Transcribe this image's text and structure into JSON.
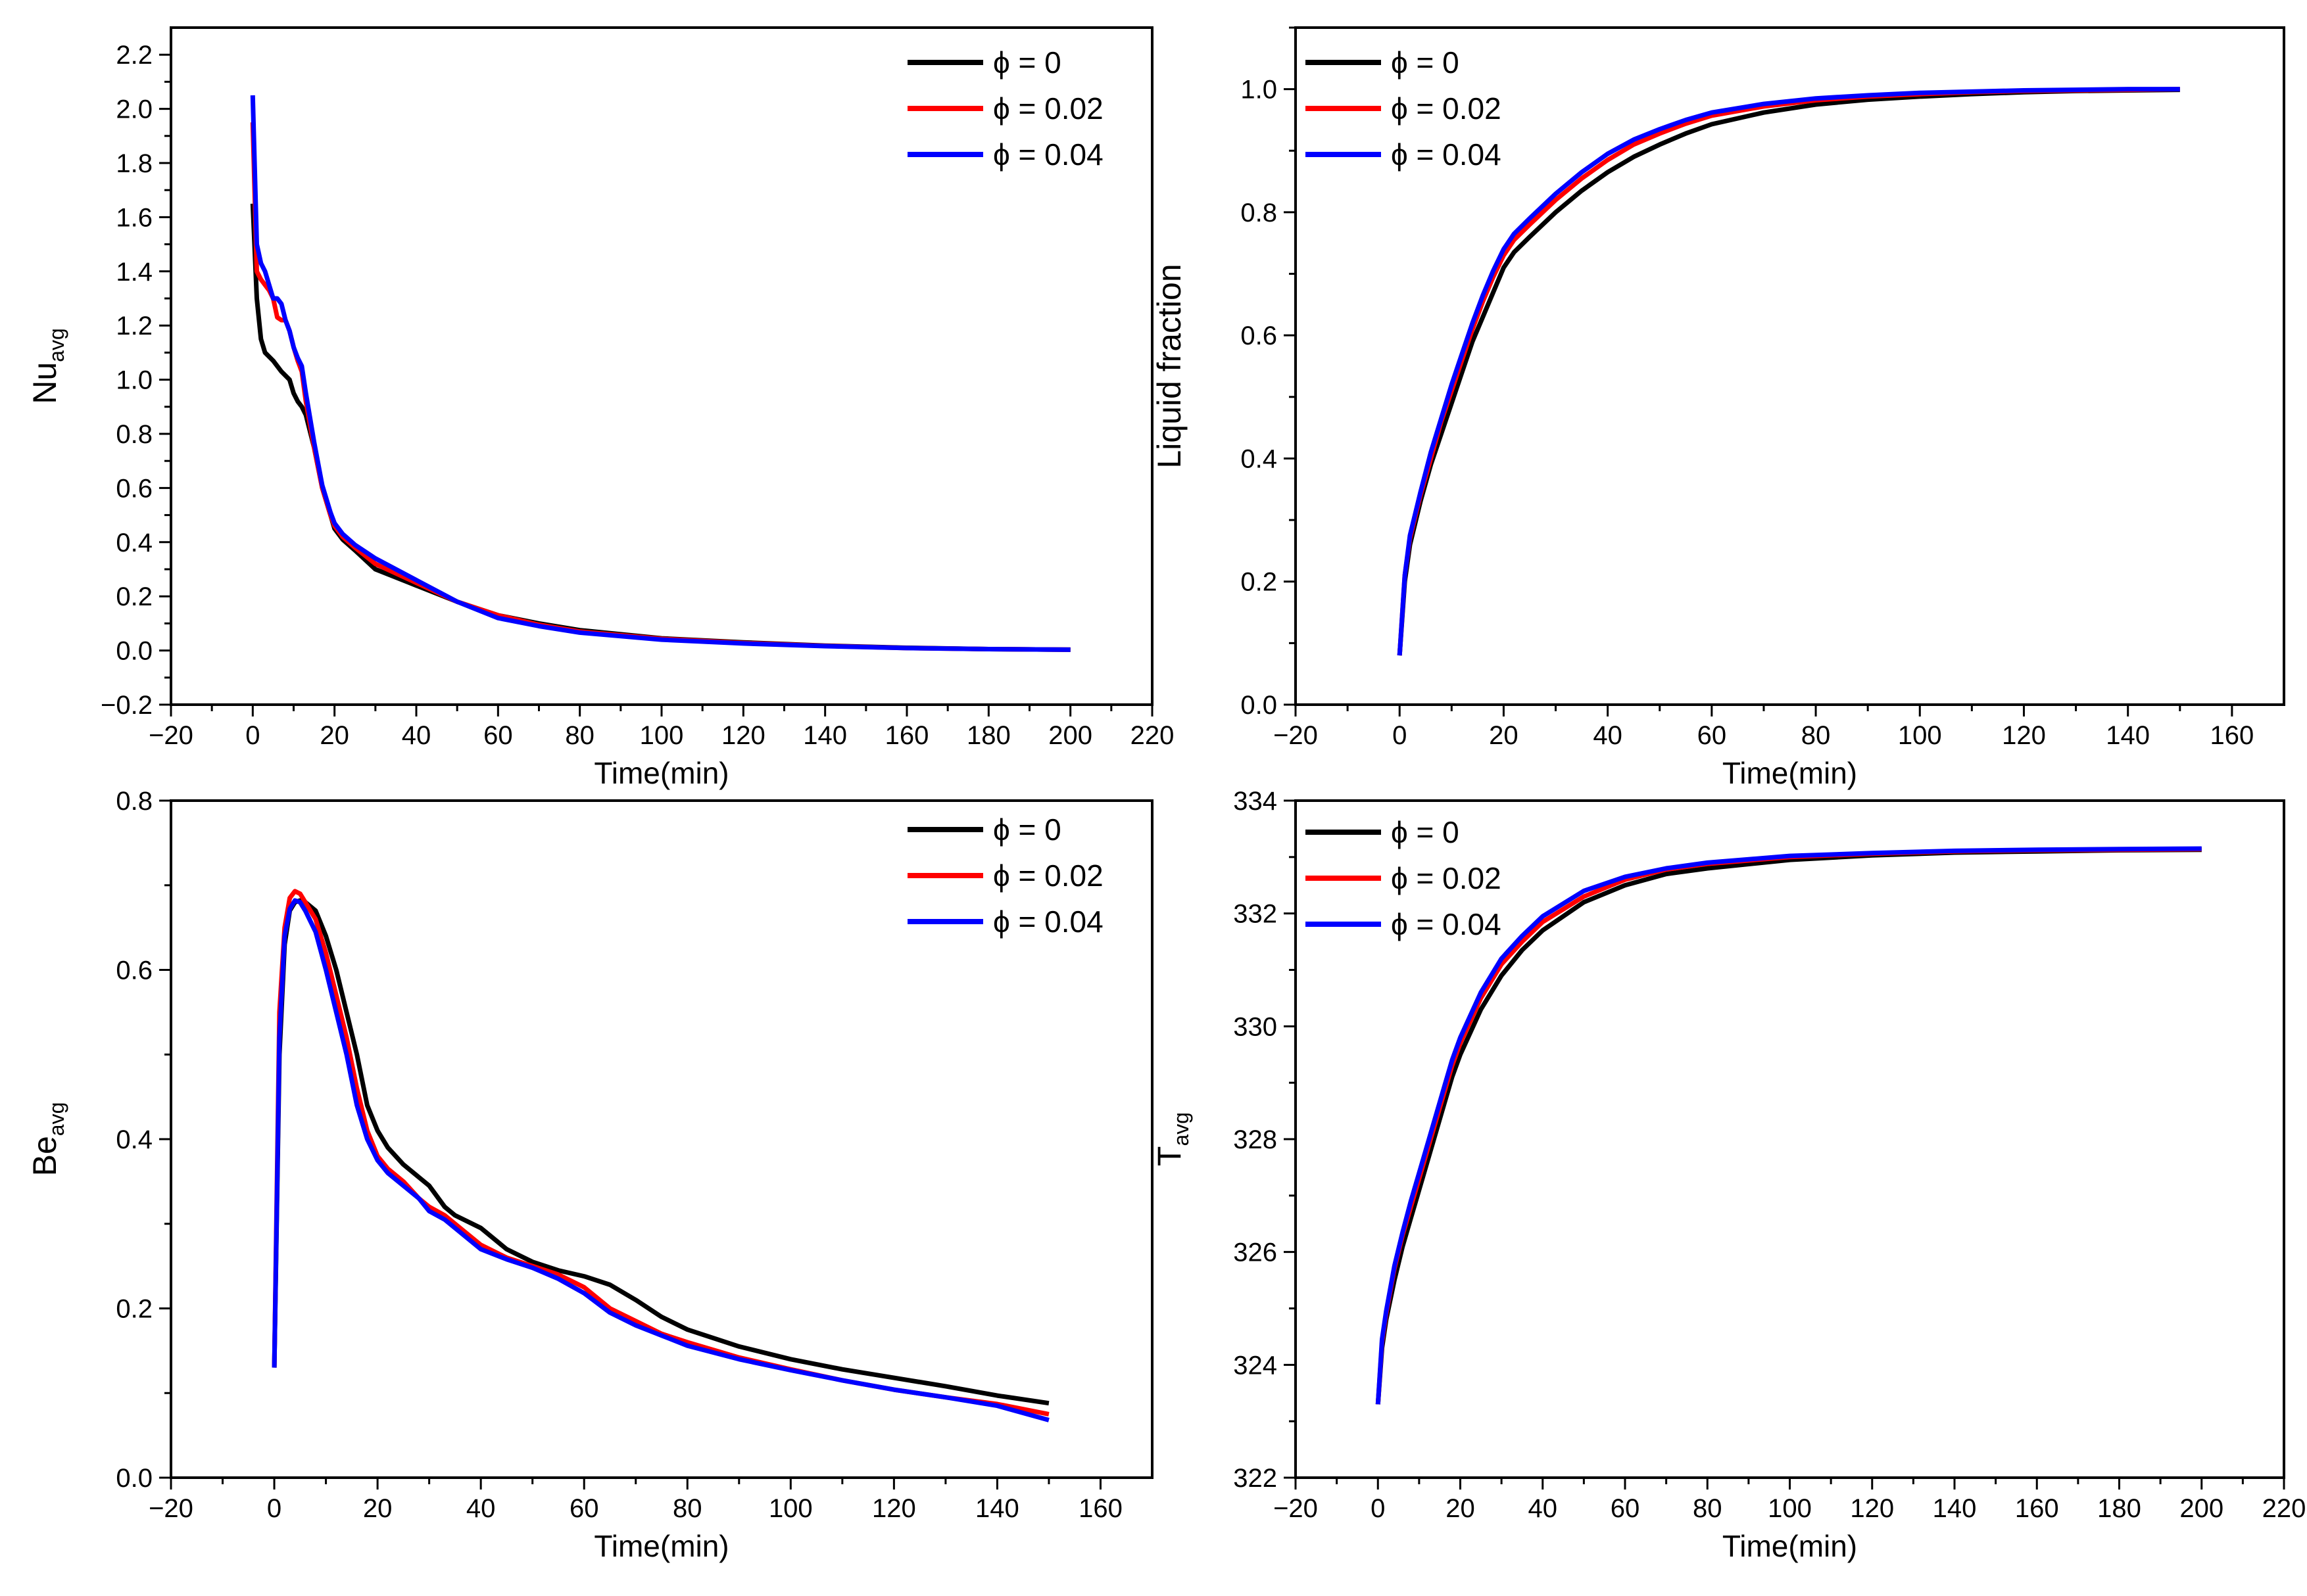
{
  "chart_data": [
    {
      "type": "line",
      "xlabel": "Time(min)",
      "ylabel": "Nu",
      "ylabel_sub": "avg",
      "xlim": [
        -20,
        220
      ],
      "ylim": [
        -0.2,
        2.3
      ],
      "xticks": [
        -20,
        0,
        20,
        40,
        60,
        80,
        100,
        120,
        140,
        160,
        180,
        200,
        220
      ],
      "yticks": [
        -0.2,
        0.0,
        0.2,
        0.4,
        0.6,
        0.8,
        1.0,
        1.2,
        1.4,
        1.6,
        1.8,
        2.0,
        2.2
      ],
      "ytick_decimals": 1,
      "legend_position": "top-right",
      "series": [
        {
          "name": "ϕ = 0",
          "color": "#000000",
          "x": [
            0,
            1,
            2,
            3,
            5,
            7,
            9,
            10,
            11,
            12,
            13,
            15,
            17,
            19,
            20,
            22,
            25,
            30,
            40,
            50,
            60,
            70,
            80,
            100,
            120,
            140,
            160,
            180,
            200
          ],
          "y": [
            1.65,
            1.3,
            1.15,
            1.1,
            1.07,
            1.03,
            1.0,
            0.95,
            0.92,
            0.9,
            0.87,
            0.75,
            0.6,
            0.5,
            0.45,
            0.41,
            0.37,
            0.3,
            0.24,
            0.18,
            0.13,
            0.1,
            0.075,
            0.045,
            0.03,
            0.018,
            0.01,
            0.005,
            0.003
          ]
        },
        {
          "name": "ϕ = 0.02",
          "color": "#ff0000",
          "x": [
            0,
            1,
            2,
            3,
            4,
            5,
            6,
            7,
            8,
            9,
            10,
            11,
            12,
            13,
            15,
            17,
            19,
            20,
            22,
            25,
            30,
            40,
            50,
            60,
            70,
            80,
            100,
            120,
            140,
            160,
            180,
            200
          ],
          "y": [
            1.95,
            1.4,
            1.37,
            1.35,
            1.33,
            1.3,
            1.23,
            1.22,
            1.22,
            1.18,
            1.12,
            1.07,
            1.03,
            0.92,
            0.75,
            0.6,
            0.5,
            0.46,
            0.42,
            0.38,
            0.32,
            0.25,
            0.18,
            0.13,
            0.095,
            0.07,
            0.043,
            0.028,
            0.017,
            0.009,
            0.005,
            0.003
          ]
        },
        {
          "name": "ϕ = 0.04",
          "color": "#0000ff",
          "x": [
            0,
            1,
            2,
            3,
            4,
            5,
            6,
            7,
            8,
            9,
            10,
            11,
            12,
            13,
            15,
            17,
            19,
            20,
            22,
            25,
            30,
            40,
            50,
            60,
            70,
            80,
            100,
            120,
            140,
            160,
            180,
            200
          ],
          "y": [
            2.05,
            1.5,
            1.43,
            1.4,
            1.35,
            1.3,
            1.3,
            1.28,
            1.22,
            1.18,
            1.12,
            1.08,
            1.05,
            0.95,
            0.77,
            0.61,
            0.51,
            0.47,
            0.43,
            0.39,
            0.34,
            0.26,
            0.18,
            0.12,
            0.09,
            0.066,
            0.04,
            0.026,
            0.016,
            0.009,
            0.005,
            0.003
          ]
        }
      ]
    },
    {
      "type": "line",
      "xlabel": "Time(min)",
      "ylabel": "Liquid fraction",
      "ylabel_sub": "",
      "xlim": [
        -20,
        170
      ],
      "ylim": [
        0.0,
        1.1
      ],
      "xticks": [
        -20,
        0,
        20,
        40,
        60,
        80,
        100,
        120,
        140,
        160
      ],
      "yticks": [
        0.0,
        0.2,
        0.4,
        0.6,
        0.8,
        1.0
      ],
      "ytick_decimals": 1,
      "legend_position": "top-left",
      "series": [
        {
          "name": "ϕ = 0",
          "color": "#000000",
          "x": [
            0,
            1,
            2,
            4,
            6,
            8,
            10,
            12,
            14,
            16,
            18,
            20,
            22,
            25,
            30,
            35,
            40,
            45,
            50,
            55,
            60,
            70,
            80,
            90,
            100,
            110,
            120,
            130,
            140,
            150
          ],
          "y": [
            0.08,
            0.2,
            0.26,
            0.33,
            0.39,
            0.44,
            0.49,
            0.54,
            0.59,
            0.63,
            0.67,
            0.71,
            0.735,
            0.76,
            0.8,
            0.835,
            0.865,
            0.89,
            0.91,
            0.928,
            0.943,
            0.962,
            0.975,
            0.983,
            0.988,
            0.992,
            0.995,
            0.997,
            0.998,
            0.999
          ]
        },
        {
          "name": "ϕ = 0.02",
          "color": "#ff0000",
          "x": [
            0,
            1,
            2,
            4,
            6,
            8,
            10,
            12,
            14,
            16,
            18,
            20,
            22,
            25,
            30,
            35,
            40,
            45,
            50,
            55,
            60,
            70,
            80,
            90,
            100,
            110,
            120,
            130,
            140,
            150
          ],
          "y": [
            0.08,
            0.21,
            0.27,
            0.34,
            0.4,
            0.46,
            0.51,
            0.56,
            0.61,
            0.655,
            0.695,
            0.73,
            0.755,
            0.78,
            0.82,
            0.855,
            0.885,
            0.91,
            0.928,
            0.944,
            0.957,
            0.972,
            0.982,
            0.988,
            0.992,
            0.995,
            0.997,
            0.998,
            0.999,
            1.0
          ]
        },
        {
          "name": "ϕ = 0.04",
          "color": "#0000ff",
          "x": [
            0,
            1,
            2,
            4,
            6,
            8,
            10,
            12,
            14,
            16,
            18,
            20,
            22,
            25,
            30,
            35,
            40,
            45,
            50,
            55,
            60,
            70,
            80,
            90,
            100,
            110,
            120,
            130,
            140,
            150
          ],
          "y": [
            0.08,
            0.21,
            0.275,
            0.345,
            0.41,
            0.465,
            0.52,
            0.57,
            0.62,
            0.665,
            0.705,
            0.74,
            0.765,
            0.79,
            0.83,
            0.865,
            0.895,
            0.918,
            0.935,
            0.95,
            0.962,
            0.976,
            0.985,
            0.99,
            0.994,
            0.996,
            0.998,
            0.999,
            1.0,
            1.0
          ]
        }
      ]
    },
    {
      "type": "line",
      "xlabel": "Time(min)",
      "ylabel": "Be",
      "ylabel_sub": "avg",
      "xlim": [
        -20,
        170
      ],
      "ylim": [
        0.0,
        0.8
      ],
      "xticks": [
        -20,
        0,
        20,
        40,
        60,
        80,
        100,
        120,
        140,
        160
      ],
      "yticks": [
        0.0,
        0.2,
        0.4,
        0.6,
        0.8
      ],
      "ytick_decimals": 1,
      "legend_position": "top-right",
      "series": [
        {
          "name": "ϕ = 0",
          "color": "#000000",
          "x": [
            0,
            1,
            2,
            3,
            4,
            5,
            6,
            8,
            10,
            12,
            14,
            16,
            18,
            20,
            22,
            25,
            28,
            30,
            33,
            35,
            40,
            45,
            50,
            55,
            60,
            65,
            70,
            75,
            80,
            90,
            100,
            110,
            120,
            130,
            140,
            150
          ],
          "y": [
            0.13,
            0.5,
            0.63,
            0.67,
            0.68,
            0.682,
            0.68,
            0.67,
            0.64,
            0.6,
            0.55,
            0.5,
            0.44,
            0.41,
            0.39,
            0.37,
            0.355,
            0.345,
            0.32,
            0.31,
            0.295,
            0.27,
            0.255,
            0.245,
            0.238,
            0.228,
            0.21,
            0.19,
            0.175,
            0.155,
            0.14,
            0.128,
            0.118,
            0.108,
            0.097,
            0.088
          ]
        },
        {
          "name": "ϕ = 0.02",
          "color": "#ff0000",
          "x": [
            0,
            1,
            2,
            3,
            4,
            5,
            6,
            8,
            10,
            12,
            14,
            16,
            18,
            20,
            22,
            25,
            28,
            30,
            33,
            35,
            40,
            45,
            50,
            55,
            60,
            65,
            70,
            75,
            80,
            90,
            100,
            110,
            120,
            130,
            140,
            150
          ],
          "y": [
            0.13,
            0.55,
            0.65,
            0.685,
            0.693,
            0.69,
            0.68,
            0.66,
            0.62,
            0.57,
            0.52,
            0.46,
            0.41,
            0.38,
            0.365,
            0.35,
            0.33,
            0.32,
            0.31,
            0.3,
            0.275,
            0.26,
            0.25,
            0.24,
            0.225,
            0.2,
            0.185,
            0.17,
            0.16,
            0.142,
            0.128,
            0.115,
            0.104,
            0.095,
            0.087,
            0.075
          ]
        },
        {
          "name": "ϕ = 0.04",
          "color": "#0000ff",
          "x": [
            0,
            1,
            2,
            3,
            4,
            5,
            6,
            8,
            10,
            12,
            14,
            16,
            18,
            20,
            22,
            25,
            28,
            30,
            33,
            35,
            40,
            45,
            50,
            55,
            60,
            65,
            70,
            75,
            80,
            90,
            100,
            110,
            120,
            130,
            140,
            150
          ],
          "y": [
            0.13,
            0.52,
            0.64,
            0.672,
            0.682,
            0.68,
            0.67,
            0.645,
            0.6,
            0.55,
            0.5,
            0.44,
            0.4,
            0.375,
            0.36,
            0.345,
            0.33,
            0.315,
            0.305,
            0.295,
            0.27,
            0.258,
            0.248,
            0.235,
            0.218,
            0.195,
            0.18,
            0.168,
            0.156,
            0.14,
            0.127,
            0.115,
            0.104,
            0.095,
            0.085,
            0.068
          ]
        }
      ]
    },
    {
      "type": "line",
      "xlabel": "Time(min)",
      "ylabel": "T",
      "ylabel_sub": "avg",
      "xlim": [
        -20,
        220
      ],
      "ylim": [
        322,
        334
      ],
      "xticks": [
        -20,
        0,
        20,
        40,
        60,
        80,
        100,
        120,
        140,
        160,
        180,
        200,
        220
      ],
      "yticks": [
        322,
        324,
        326,
        328,
        330,
        332,
        334
      ],
      "ytick_decimals": 0,
      "legend_position": "top-left",
      "series": [
        {
          "name": "ϕ = 0",
          "color": "#000000",
          "x": [
            0,
            1,
            2,
            4,
            6,
            8,
            10,
            12,
            14,
            16,
            18,
            20,
            25,
            30,
            35,
            40,
            50,
            60,
            70,
            80,
            100,
            120,
            140,
            160,
            180,
            200
          ],
          "y": [
            323.3,
            324.3,
            324.8,
            325.5,
            326.1,
            326.6,
            327.1,
            327.6,
            328.1,
            328.6,
            329.1,
            329.5,
            330.3,
            330.9,
            331.35,
            331.7,
            332.2,
            332.5,
            332.7,
            332.8,
            332.95,
            333.03,
            333.08,
            333.1,
            333.12,
            333.13
          ]
        },
        {
          "name": "ϕ = 0.02",
          "color": "#ff0000",
          "x": [
            0,
            1,
            2,
            4,
            6,
            8,
            10,
            12,
            14,
            16,
            18,
            20,
            25,
            30,
            35,
            40,
            50,
            60,
            70,
            80,
            100,
            120,
            140,
            160,
            180,
            200
          ],
          "y": [
            323.3,
            324.4,
            324.9,
            325.7,
            326.3,
            326.8,
            327.3,
            327.8,
            328.3,
            328.8,
            329.3,
            329.7,
            330.5,
            331.1,
            331.5,
            331.85,
            332.3,
            332.6,
            332.78,
            332.88,
            333.0,
            333.06,
            333.1,
            333.12,
            333.13,
            333.14
          ]
        },
        {
          "name": "ϕ = 0.04",
          "color": "#0000ff",
          "x": [
            0,
            1,
            2,
            4,
            6,
            8,
            10,
            12,
            14,
            16,
            18,
            20,
            25,
            30,
            35,
            40,
            50,
            60,
            70,
            80,
            100,
            120,
            140,
            160,
            180,
            200
          ],
          "y": [
            323.3,
            324.45,
            324.95,
            325.75,
            326.35,
            326.9,
            327.4,
            327.9,
            328.4,
            328.9,
            329.4,
            329.8,
            330.6,
            331.2,
            331.6,
            331.95,
            332.4,
            332.65,
            332.8,
            332.9,
            333.02,
            333.07,
            333.11,
            333.13,
            333.14,
            333.15
          ]
        }
      ]
    }
  ]
}
